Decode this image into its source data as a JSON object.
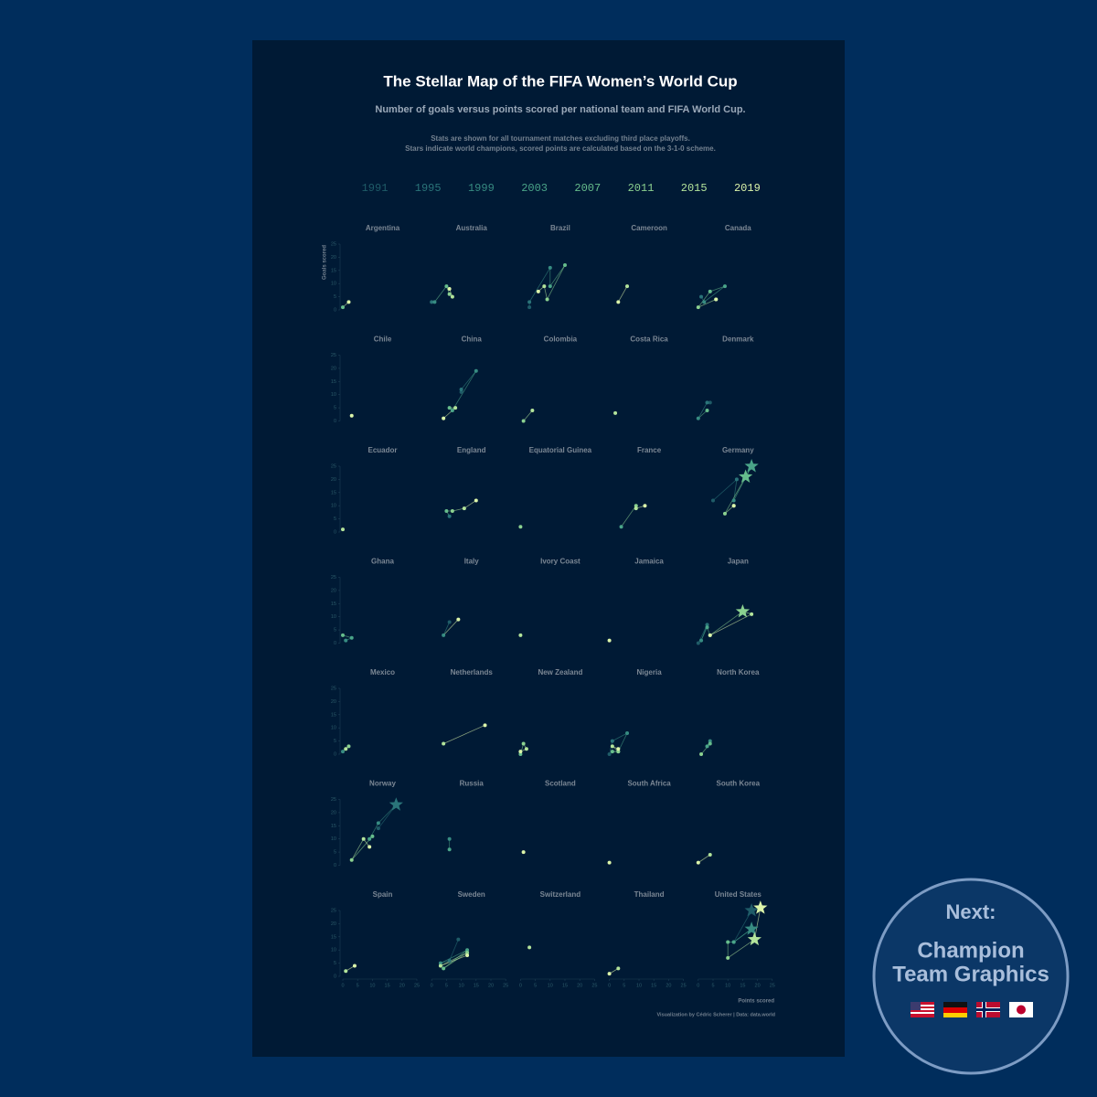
{
  "chart_data": {
    "type": "scatter",
    "title": "The Stellar Map of the FIFA Women’s World Cup",
    "subtitle": "Number of goals versus points scored per national team and FIFA World Cup.",
    "notes": [
      "Stats are shown for all tournament matches excluding third place playoffs.",
      "Stars indicate world champions, scored points are calculated based on the 3-1-0 scheme."
    ],
    "years": [
      1991,
      1995,
      1999,
      2003,
      2007,
      2011,
      2015,
      2019
    ],
    "year_colors": [
      "#1f5c68",
      "#2a7479",
      "#378c82",
      "#4aa589",
      "#66bd8c",
      "#8bd190",
      "#b3e49b",
      "#dcf5aa"
    ],
    "x_label": "Points scored",
    "y_label": "Goals scored",
    "xlim": [
      0,
      25
    ],
    "xticks": [
      0,
      5,
      10,
      15,
      20,
      25
    ],
    "ylim": [
      0,
      25
    ],
    "yticks": [
      0,
      5,
      10,
      15,
      20,
      25
    ],
    "credit": "Visualization by Cédric Scherer  |  Data: data.world",
    "panels": [
      {
        "name": "Argentina",
        "points": [
          {
            "year": 2007,
            "x": 0,
            "y": 1
          },
          {
            "year": 2019,
            "x": 2,
            "y": 3
          }
        ]
      },
      {
        "name": "Australia",
        "points": [
          {
            "year": 1995,
            "x": 0,
            "y": 3
          },
          {
            "year": 1999,
            "x": 1,
            "y": 3
          },
          {
            "year": 2007,
            "x": 5,
            "y": 9
          },
          {
            "year": 2011,
            "x": 6,
            "y": 6
          },
          {
            "year": 2015,
            "x": 7,
            "y": 5
          },
          {
            "year": 2019,
            "x": 6,
            "y": 8
          }
        ]
      },
      {
        "name": "Brazil",
        "points": [
          {
            "year": 1991,
            "x": 3,
            "y": 1
          },
          {
            "year": 1995,
            "x": 3,
            "y": 3
          },
          {
            "year": 1999,
            "x": 10,
            "y": 16
          },
          {
            "year": 2003,
            "x": 10,
            "y": 9
          },
          {
            "year": 2007,
            "x": 15,
            "y": 17
          },
          {
            "year": 2011,
            "x": 9,
            "y": 4
          },
          {
            "year": 2015,
            "x": 8,
            "y": 9
          },
          {
            "year": 2019,
            "x": 6,
            "y": 7
          }
        ]
      },
      {
        "name": "Cameroon",
        "points": [
          {
            "year": 2015,
            "x": 6,
            "y": 9
          },
          {
            "year": 2019,
            "x": 3,
            "y": 3
          }
        ]
      },
      {
        "name": "Canada",
        "points": [
          {
            "year": 1995,
            "x": 1,
            "y": 5
          },
          {
            "year": 1999,
            "x": 2,
            "y": 3
          },
          {
            "year": 2003,
            "x": 9,
            "y": 9
          },
          {
            "year": 2007,
            "x": 4,
            "y": 7
          },
          {
            "year": 2011,
            "x": 0,
            "y": 1
          },
          {
            "year": 2015,
            "x": 6,
            "y": 4
          },
          {
            "year": 2019,
            "x": 6,
            "y": 4
          }
        ]
      },
      {
        "name": "Chile",
        "points": [
          {
            "year": 2019,
            "x": 3,
            "y": 2
          }
        ]
      },
      {
        "name": "China",
        "points": [
          {
            "year": 1991,
            "x": 10,
            "y": 11
          },
          {
            "year": 1995,
            "x": 10,
            "y": 12
          },
          {
            "year": 1999,
            "x": 15,
            "y": 19
          },
          {
            "year": 2003,
            "x": 7,
            "y": 4
          },
          {
            "year": 2007,
            "x": 6,
            "y": 5
          },
          {
            "year": 2015,
            "x": 8,
            "y": 5
          },
          {
            "year": 2019,
            "x": 4,
            "y": 1
          }
        ]
      },
      {
        "name": "Colombia",
        "points": [
          {
            "year": 2011,
            "x": 1,
            "y": 0
          },
          {
            "year": 2015,
            "x": 4,
            "y": 4
          }
        ]
      },
      {
        "name": "Costa Rica",
        "points": [
          {
            "year": 2015,
            "x": 2,
            "y": 3
          }
        ]
      },
      {
        "name": "Denmark",
        "points": [
          {
            "year": 1991,
            "x": 4,
            "y": 7
          },
          {
            "year": 1995,
            "x": 3,
            "y": 7
          },
          {
            "year": 1999,
            "x": 0,
            "y": 1
          },
          {
            "year": 2007,
            "x": 3,
            "y": 4
          }
        ]
      },
      {
        "name": "Ecuador",
        "points": [
          {
            "year": 2015,
            "x": 0,
            "y": 1
          }
        ]
      },
      {
        "name": "England",
        "points": [
          {
            "year": 1995,
            "x": 6,
            "y": 6
          },
          {
            "year": 2007,
            "x": 5,
            "y": 8
          },
          {
            "year": 2011,
            "x": 7,
            "y": 8
          },
          {
            "year": 2015,
            "x": 11,
            "y": 9
          },
          {
            "year": 2019,
            "x": 15,
            "y": 12
          }
        ]
      },
      {
        "name": "Equatorial Guinea",
        "points": [
          {
            "year": 2011,
            "x": 0,
            "y": 2
          }
        ]
      },
      {
        "name": "France",
        "points": [
          {
            "year": 2003,
            "x": 4,
            "y": 2
          },
          {
            "year": 2011,
            "x": 9,
            "y": 10
          },
          {
            "year": 2015,
            "x": 9,
            "y": 9
          },
          {
            "year": 2019,
            "x": 12,
            "y": 10
          }
        ]
      },
      {
        "name": "Germany",
        "points": [
          {
            "year": 1991,
            "x": 5,
            "y": 12
          },
          {
            "year": 1995,
            "x": 13,
            "y": 20
          },
          {
            "year": 1999,
            "x": 12,
            "y": 12
          },
          {
            "year": 2003,
            "x": 18,
            "y": 25,
            "star": true
          },
          {
            "year": 2007,
            "x": 16,
            "y": 21,
            "star": true
          },
          {
            "year": 2011,
            "x": 9,
            "y": 7
          },
          {
            "year": 2015,
            "x": 12,
            "y": 10
          },
          {
            "year": 2019,
            "x": 12,
            "y": 10
          }
        ]
      },
      {
        "name": "Ghana",
        "points": [
          {
            "year": 1999,
            "x": 1,
            "y": 1
          },
          {
            "year": 2003,
            "x": 3,
            "y": 2
          },
          {
            "year": 2007,
            "x": 0,
            "y": 3
          }
        ]
      },
      {
        "name": "Italy",
        "points": [
          {
            "year": 1991,
            "x": 6,
            "y": 8
          },
          {
            "year": 1999,
            "x": 4,
            "y": 3
          },
          {
            "year": 2019,
            "x": 9,
            "y": 9
          }
        ]
      },
      {
        "name": "Ivory Coast",
        "points": [
          {
            "year": 2015,
            "x": 0,
            "y": 3
          }
        ]
      },
      {
        "name": "Jamaica",
        "points": [
          {
            "year": 2019,
            "x": 0,
            "y": 1
          }
        ]
      },
      {
        "name": "Japan",
        "points": [
          {
            "year": 1991,
            "x": 0,
            "y": 0
          },
          {
            "year": 1995,
            "x": 3,
            "y": 7
          },
          {
            "year": 1999,
            "x": 1,
            "y": 1
          },
          {
            "year": 2003,
            "x": 3,
            "y": 6
          },
          {
            "year": 2007,
            "x": 4,
            "y": 3
          },
          {
            "year": 2011,
            "x": 15,
            "y": 12,
            "star": true
          },
          {
            "year": 2015,
            "x": 18,
            "y": 11
          },
          {
            "year": 2019,
            "x": 4,
            "y": 3
          }
        ]
      },
      {
        "name": "Mexico",
        "points": [
          {
            "year": 1999,
            "x": 0,
            "y": 1
          },
          {
            "year": 2011,
            "x": 2,
            "y": 3
          },
          {
            "year": 2015,
            "x": 1,
            "y": 2
          }
        ]
      },
      {
        "name": "Netherlands",
        "points": [
          {
            "year": 2015,
            "x": 4,
            "y": 4
          },
          {
            "year": 2019,
            "x": 18,
            "y": 11
          }
        ]
      },
      {
        "name": "New Zealand",
        "points": [
          {
            "year": 1991,
            "x": 0,
            "y": 1
          },
          {
            "year": 2007,
            "x": 0,
            "y": 0
          },
          {
            "year": 2011,
            "x": 1,
            "y": 4
          },
          {
            "year": 2015,
            "x": 2,
            "y": 2
          },
          {
            "year": 2019,
            "x": 0,
            "y": 1
          }
        ]
      },
      {
        "name": "Nigeria",
        "points": [
          {
            "year": 1991,
            "x": 0,
            "y": 0
          },
          {
            "year": 1995,
            "x": 1,
            "y": 5
          },
          {
            "year": 1999,
            "x": 6,
            "y": 8
          },
          {
            "year": 2003,
            "x": 3,
            "y": 1
          },
          {
            "year": 2007,
            "x": 1,
            "y": 1
          },
          {
            "year": 2011,
            "x": 3,
            "y": 1
          },
          {
            "year": 2015,
            "x": 1,
            "y": 3
          },
          {
            "year": 2019,
            "x": 3,
            "y": 2
          }
        ]
      },
      {
        "name": "North Korea",
        "points": [
          {
            "year": 1999,
            "x": 4,
            "y": 5
          },
          {
            "year": 2003,
            "x": 3,
            "y": 3
          },
          {
            "year": 2007,
            "x": 4,
            "y": 4
          },
          {
            "year": 2011,
            "x": 1,
            "y": 0
          }
        ]
      },
      {
        "name": "Norway",
        "points": [
          {
            "year": 1991,
            "x": 12,
            "y": 14
          },
          {
            "year": 1995,
            "x": 18,
            "y": 23,
            "star": true
          },
          {
            "year": 1999,
            "x": 12,
            "y": 16
          },
          {
            "year": 2003,
            "x": 9,
            "y": 10
          },
          {
            "year": 2007,
            "x": 10,
            "y": 11
          },
          {
            "year": 2011,
            "x": 3,
            "y": 2
          },
          {
            "year": 2015,
            "x": 7,
            "y": 10
          },
          {
            "year": 2019,
            "x": 9,
            "y": 7
          }
        ]
      },
      {
        "name": "Russia",
        "points": [
          {
            "year": 1999,
            "x": 6,
            "y": 10
          },
          {
            "year": 2003,
            "x": 6,
            "y": 6
          }
        ]
      },
      {
        "name": "Scotland",
        "points": [
          {
            "year": 2019,
            "x": 1,
            "y": 5
          }
        ]
      },
      {
        "name": "South Africa",
        "points": [
          {
            "year": 2019,
            "x": 0,
            "y": 1
          }
        ]
      },
      {
        "name": "South Korea",
        "points": [
          {
            "year": 2015,
            "x": 4,
            "y": 4
          },
          {
            "year": 2019,
            "x": 0,
            "y": 1
          }
        ]
      },
      {
        "name": "Spain",
        "points": [
          {
            "year": 2015,
            "x": 1,
            "y": 2
          },
          {
            "year": 2019,
            "x": 4,
            "y": 4
          }
        ]
      },
      {
        "name": "Sweden",
        "points": [
          {
            "year": 1991,
            "x": 9,
            "y": 14
          },
          {
            "year": 1995,
            "x": 6,
            "y": 6
          },
          {
            "year": 1999,
            "x": 3,
            "y": 5
          },
          {
            "year": 2003,
            "x": 12,
            "y": 10
          },
          {
            "year": 2007,
            "x": 4,
            "y": 3
          },
          {
            "year": 2011,
            "x": 12,
            "y": 9
          },
          {
            "year": 2015,
            "x": 3,
            "y": 4
          },
          {
            "year": 2019,
            "x": 12,
            "y": 8
          }
        ]
      },
      {
        "name": "Switzerland",
        "points": [
          {
            "year": 2015,
            "x": 3,
            "y": 11
          }
        ]
      },
      {
        "name": "Thailand",
        "points": [
          {
            "year": 2015,
            "x": 3,
            "y": 3
          },
          {
            "year": 2019,
            "x": 0,
            "y": 1
          }
        ]
      },
      {
        "name": "United States",
        "points": [
          {
            "year": 1991,
            "x": 18,
            "y": 25,
            "star": true
          },
          {
            "year": 1995,
            "x": 12,
            "y": 13
          },
          {
            "year": 1999,
            "x": 18,
            "y": 18,
            "star": true
          },
          {
            "year": 2003,
            "x": 12,
            "y": 13
          },
          {
            "year": 2007,
            "x": 10,
            "y": 13
          },
          {
            "year": 2011,
            "x": 10,
            "y": 7
          },
          {
            "year": 2015,
            "x": 19,
            "y": 14,
            "star": true
          },
          {
            "year": 2019,
            "x": 21,
            "y": 26,
            "star": true
          }
        ]
      }
    ]
  },
  "badge": {
    "title": "Next:",
    "lines": [
      "Champion",
      "Team Graphics"
    ]
  }
}
